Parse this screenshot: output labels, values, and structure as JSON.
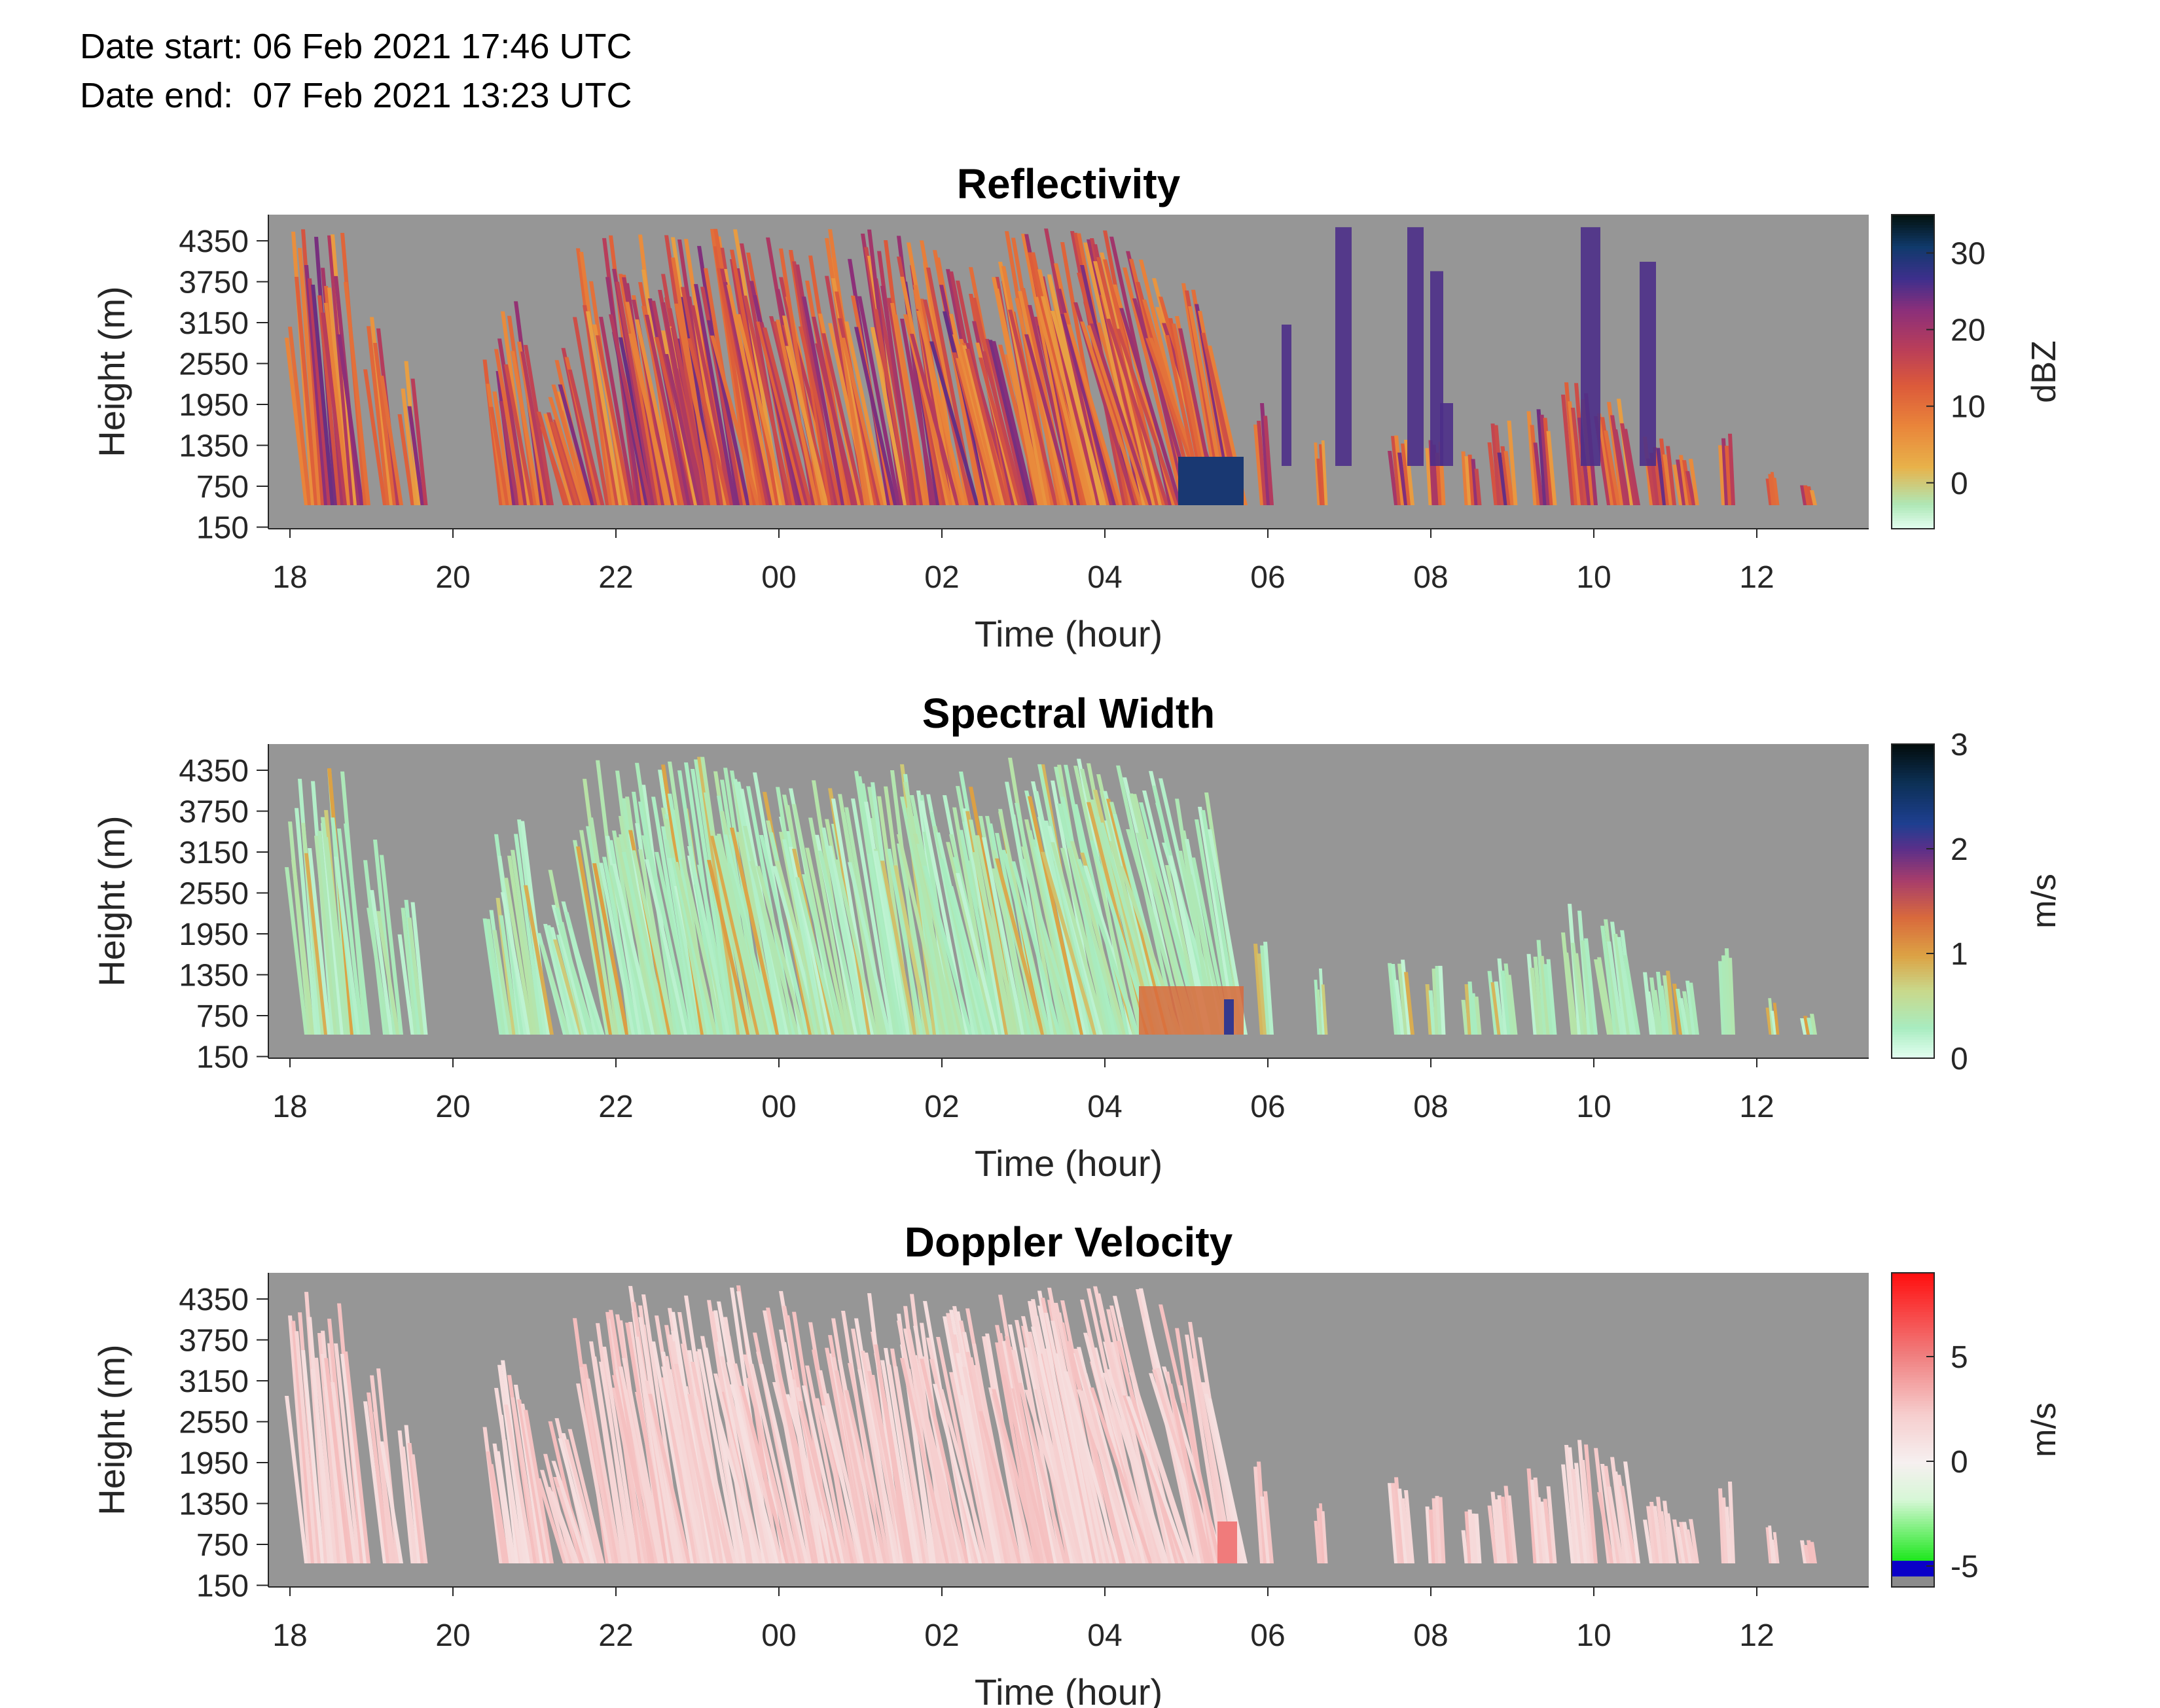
{
  "header": {
    "date_start": "Date start: 06 Feb 2021 17:46 UTC",
    "date_end": "Date end:  07 Feb 2021 13:23 UTC"
  },
  "colors": {
    "background_no_data": "#969696",
    "axis": "#262626",
    "doppler_positive": "#f3b8b8",
    "doppler_negative_low": "#0a00c8",
    "doppler_green": "#20e820"
  },
  "chart_data": [
    {
      "type": "heatmap",
      "title": "Reflectivity",
      "xlabel": "Time (hour)",
      "ylabel": "Height (m)",
      "colorbar_label": "dBZ",
      "xticks": [
        "18",
        "20",
        "22",
        "00",
        "02",
        "04",
        "06",
        "08",
        "10",
        "12"
      ],
      "yticks": [
        "4350",
        "3750",
        "3150",
        "2550",
        "1950",
        "1350",
        "750",
        "150"
      ],
      "cticks": [
        "30",
        "20",
        "10",
        "0"
      ],
      "xlim": [
        17.77,
        37.4
      ],
      "ylim": [
        150,
        4650
      ],
      "clim": [
        -6,
        35
      ],
      "colormap": "reflectivity",
      "grid": false
    },
    {
      "type": "heatmap",
      "title": "Spectral Width",
      "xlabel": "Time (hour)",
      "ylabel": "Height (m)",
      "colorbar_label": "m/s",
      "xticks": [
        "18",
        "20",
        "22",
        "00",
        "02",
        "04",
        "06",
        "08",
        "10",
        "12"
      ],
      "yticks": [
        "4350",
        "3750",
        "3150",
        "2550",
        "1950",
        "1350",
        "750",
        "150"
      ],
      "cticks": [
        "3",
        "2",
        "1",
        "0"
      ],
      "xlim": [
        17.77,
        37.4
      ],
      "ylim": [
        150,
        4650
      ],
      "clim": [
        0,
        3
      ],
      "colormap": "spectral_width",
      "grid": false
    },
    {
      "type": "heatmap",
      "title": "Doppler Velocity",
      "xlabel": "Time (hour)",
      "ylabel": "Height (m)",
      "colorbar_label": "m/s",
      "xticks": [
        "18",
        "20",
        "22",
        "00",
        "02",
        "04",
        "06",
        "08",
        "10",
        "12"
      ],
      "yticks": [
        "4350",
        "3750",
        "3150",
        "2550",
        "1950",
        "1350",
        "750",
        "150"
      ],
      "cticks": [
        "5",
        "0",
        "-5"
      ],
      "xlim": [
        17.77,
        37.4
      ],
      "ylim": [
        150,
        4650
      ],
      "clim": [
        -6,
        9
      ],
      "colormap": "doppler",
      "grid": false
    }
  ]
}
